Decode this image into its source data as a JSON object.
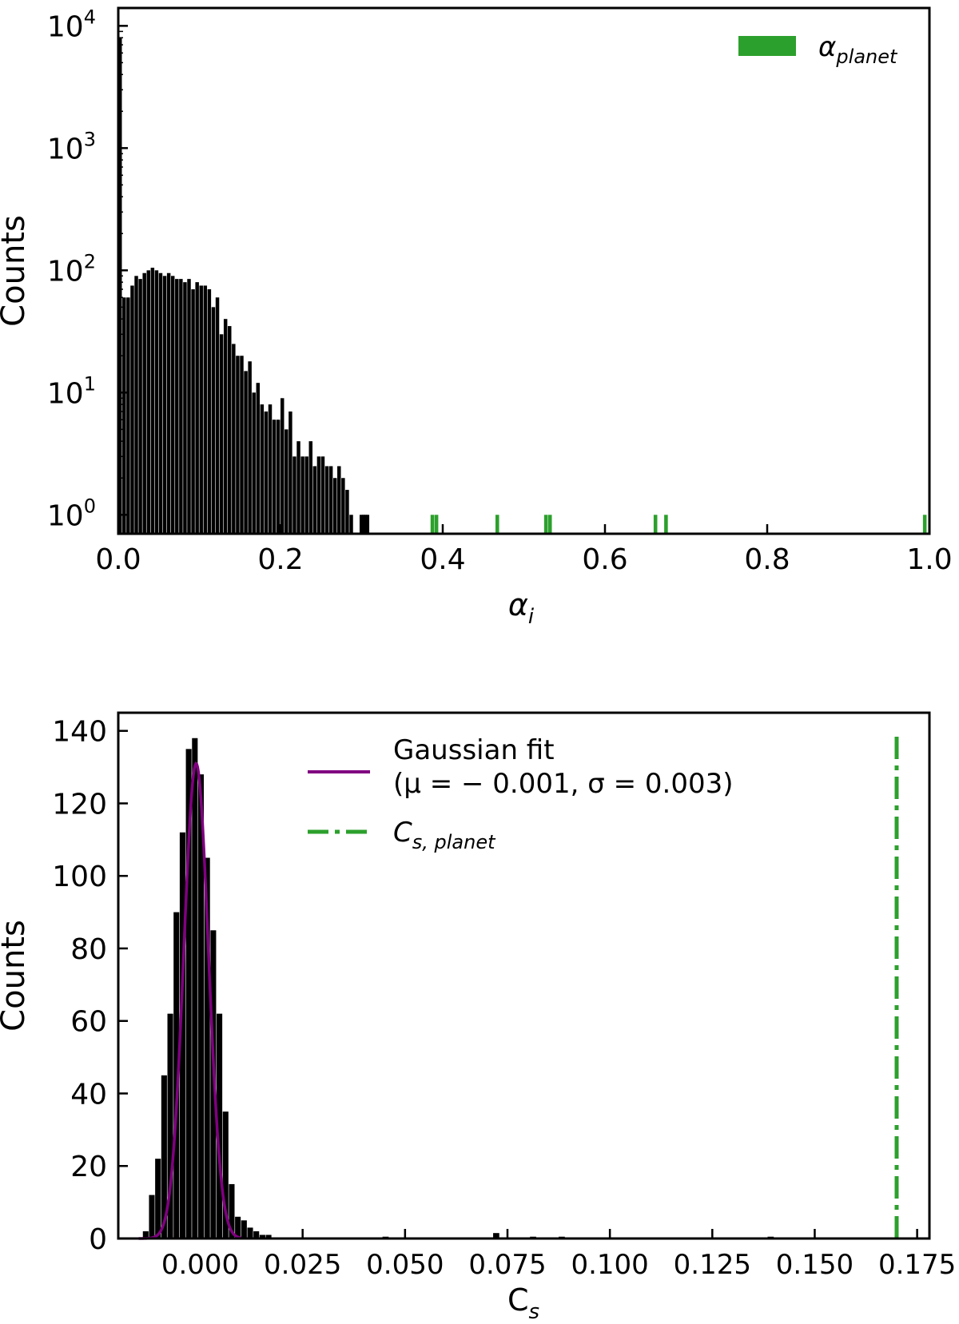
{
  "chart_data": [
    {
      "type": "bar",
      "xlabel": "α",
      "xlabel_sub": "i",
      "ylabel": "Counts",
      "yscale": "log",
      "xlim": [
        0.0,
        1.0
      ],
      "ylim": [
        0.7,
        14000
      ],
      "grid": false,
      "legend": "top-right",
      "xticks": [
        0.0,
        0.2,
        0.4,
        0.6,
        0.8,
        1.0
      ],
      "xtick_labels": [
        "0.0",
        "0.2",
        "0.4",
        "0.6",
        "0.8",
        "1.0"
      ],
      "yticks": [
        1,
        10,
        100,
        1000,
        10000
      ],
      "ytick_base": "10",
      "ytick_exponents": [
        "0",
        "1",
        "2",
        "3",
        "4"
      ],
      "bin_width": 0.005,
      "series": [
        {
          "name": "",
          "color": "#000000",
          "x_start": 0.0,
          "values": [
            8000,
            60,
            60,
            75,
            90,
            85,
            95,
            100,
            105,
            100,
            95,
            90,
            95,
            90,
            85,
            85,
            80,
            85,
            70,
            80,
            75,
            75,
            70,
            50,
            60,
            30,
            40,
            35,
            25,
            20,
            20,
            15,
            18,
            10,
            12,
            8,
            7,
            8,
            6,
            6,
            9,
            5,
            7,
            3,
            4,
            3,
            3,
            4,
            2.5,
            3,
            3,
            2.5,
            2.5,
            2,
            2.5,
            2,
            1.6,
            1,
            0,
            0,
            1,
            1
          ],
          "extra_points": [
            {
              "x": 0.2975,
              "value": 1
            },
            {
              "x": 0.3025,
              "value": 1
            }
          ]
        },
        {
          "name_base": "α",
          "name_sub": "planet",
          "color": "#2ca02c",
          "points": [
            {
              "x": 0.385,
              "value": 1
            },
            {
              "x": 0.39,
              "value": 1
            },
            {
              "x": 0.465,
              "value": 1
            },
            {
              "x": 0.525,
              "value": 1
            },
            {
              "x": 0.53,
              "value": 1
            },
            {
              "x": 0.66,
              "value": 1
            },
            {
              "x": 0.673,
              "value": 1
            },
            {
              "x": 0.992,
              "value": 1
            }
          ]
        }
      ]
    },
    {
      "type": "bar",
      "xlabel": "C",
      "xlabel_sub": "s",
      "ylabel": "Counts",
      "yscale": "linear",
      "xlim": [
        -0.02,
        0.178
      ],
      "ylim": [
        0,
        145
      ],
      "grid": false,
      "legend": "top-center",
      "xticks": [
        0.0,
        0.025,
        0.05,
        0.075,
        0.1,
        0.125,
        0.15,
        0.175
      ],
      "xtick_labels": [
        "0.000",
        "0.025",
        "0.050",
        "0.075",
        "0.100",
        "0.125",
        "0.150",
        "0.175"
      ],
      "yticks": [
        0,
        20,
        40,
        60,
        80,
        100,
        120,
        140
      ],
      "ytick_labels": [
        "0",
        "20",
        "40",
        "60",
        "80",
        "100",
        "120",
        "140"
      ],
      "bin_width": 0.0015,
      "series": [
        {
          "name": "",
          "color": "#000000",
          "x_start": -0.014,
          "values": [
            2,
            12,
            22,
            45,
            62,
            90,
            112,
            135,
            138,
            128,
            105,
            85,
            62,
            35,
            15,
            6,
            5,
            3,
            2,
            1,
            1
          ],
          "extra_points": [
            {
              "x": 0.0445,
              "value": 0.5
            },
            {
              "x": 0.0715,
              "value": 1.5
            },
            {
              "x": 0.0805,
              "value": 0.5
            },
            {
              "x": 0.0875,
              "value": 0.5
            },
            {
              "x": 0.1385,
              "value": 0.5
            }
          ]
        },
        {
          "name": "Gaussian fit",
          "name_line2": "(μ = − 0.001, σ = 0.003)",
          "type": "line",
          "color": "#800080",
          "mu": -0.001,
          "sigma": 0.003,
          "x_range": [
            -0.015,
            0.01
          ],
          "peak": 131
        },
        {
          "name_base": "C",
          "name_sub": "s, planet",
          "type": "vline",
          "style": "dashdot",
          "color": "#2ca02c",
          "x": 0.17,
          "y_range": [
            0,
            140
          ]
        }
      ]
    }
  ]
}
